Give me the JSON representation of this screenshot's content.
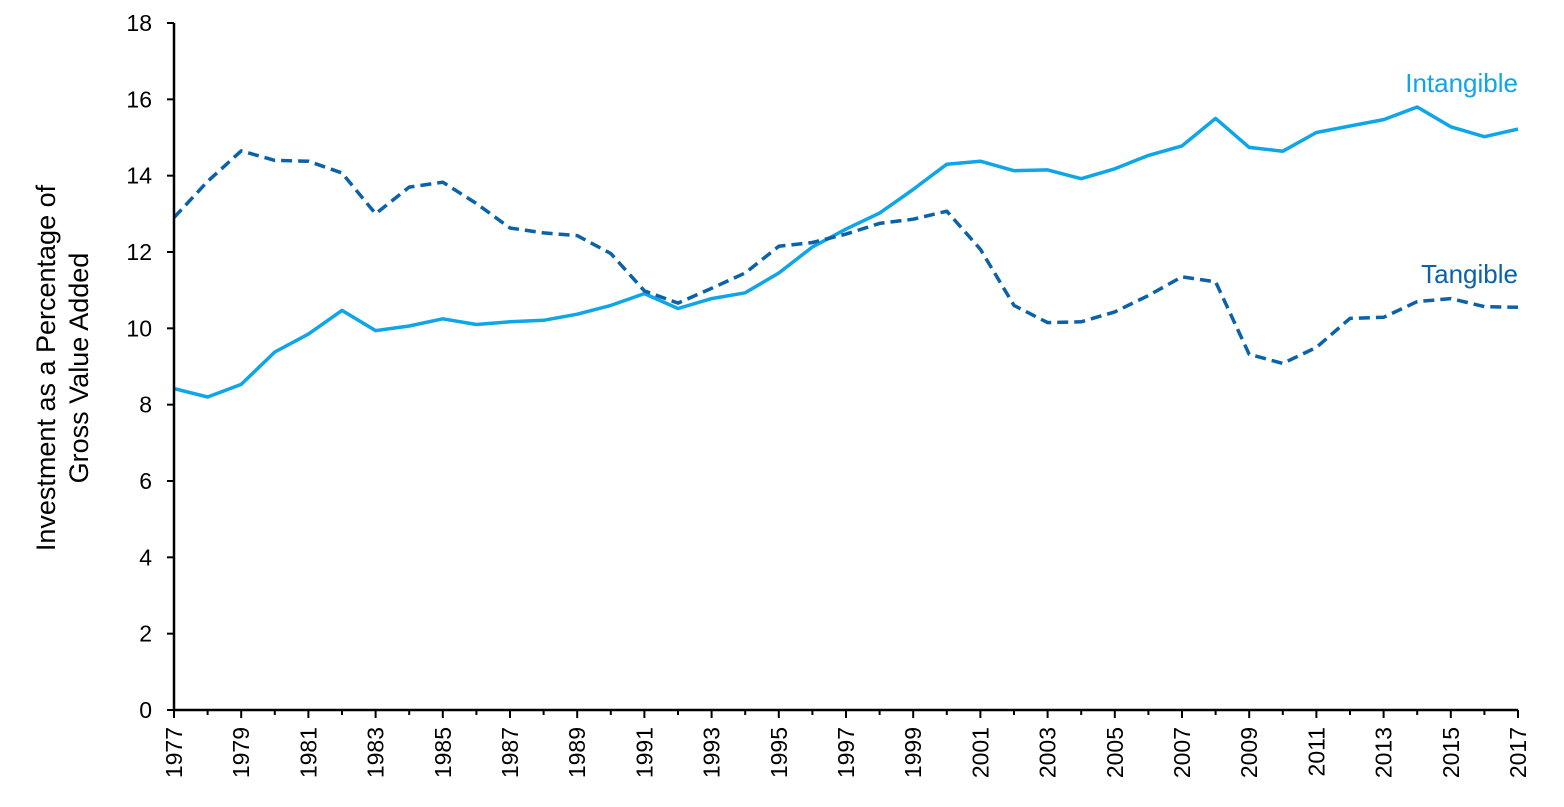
{
  "chart_data": {
    "type": "line",
    "title": "",
    "xlabel": "",
    "ylabel_lines": [
      "Investment as a Percentage of",
      "Gross Value Added"
    ],
    "ylim": [
      0,
      18
    ],
    "yticks": [
      0,
      2,
      4,
      6,
      8,
      10,
      12,
      14,
      16,
      18
    ],
    "xlim": [
      1977,
      2017
    ],
    "xticks": [
      1977,
      1979,
      1981,
      1983,
      1985,
      1987,
      1989,
      1991,
      1993,
      1995,
      1997,
      1999,
      2001,
      2003,
      2005,
      2007,
      2009,
      2011,
      2013,
      2015,
      2017
    ],
    "x": [
      1977,
      1978,
      1979,
      1980,
      1981,
      1982,
      1983,
      1984,
      1985,
      1986,
      1987,
      1988,
      1989,
      1990,
      1991,
      1992,
      1993,
      1994,
      1995,
      1996,
      1997,
      1998,
      1999,
      2000,
      2001,
      2002,
      2003,
      2004,
      2005,
      2006,
      2007,
      2008,
      2009,
      2010,
      2011,
      2012,
      2013,
      2014,
      2015,
      2016,
      2017
    ],
    "grid": false,
    "legend": "none (series labeled directly on chart)",
    "series": [
      {
        "name": "Intangible",
        "color": "#0ea5e9",
        "style": "solid",
        "label_anchor_year": 2017,
        "label_anchor_value": 16.4,
        "values": [
          8.42,
          8.2,
          8.53,
          9.38,
          9.85,
          10.47,
          9.94,
          10.06,
          10.25,
          10.1,
          10.17,
          10.21,
          10.37,
          10.6,
          10.91,
          10.52,
          10.78,
          10.93,
          11.45,
          12.13,
          12.6,
          13.02,
          13.64,
          14.3,
          14.38,
          14.13,
          14.15,
          13.92,
          14.18,
          14.53,
          14.78,
          15.5,
          14.74,
          14.64,
          15.13,
          15.3,
          15.47,
          15.8,
          15.28,
          15.02,
          15.22
        ]
      },
      {
        "name": "Tangible",
        "color": "#0b62a8",
        "style": "dashed",
        "label_anchor_year": 2017,
        "label_anchor_value": 11.4,
        "values": [
          12.9,
          13.85,
          14.65,
          14.4,
          14.38,
          14.07,
          13.0,
          13.7,
          13.83,
          13.27,
          12.63,
          12.5,
          12.43,
          11.96,
          10.98,
          10.66,
          11.05,
          11.45,
          12.15,
          12.25,
          12.47,
          12.75,
          12.86,
          13.07,
          12.07,
          10.6,
          10.15,
          10.17,
          10.43,
          10.86,
          11.35,
          11.22,
          9.32,
          9.08,
          9.5,
          10.26,
          10.29,
          10.7,
          10.78,
          10.57,
          10.55
        ]
      }
    ]
  }
}
